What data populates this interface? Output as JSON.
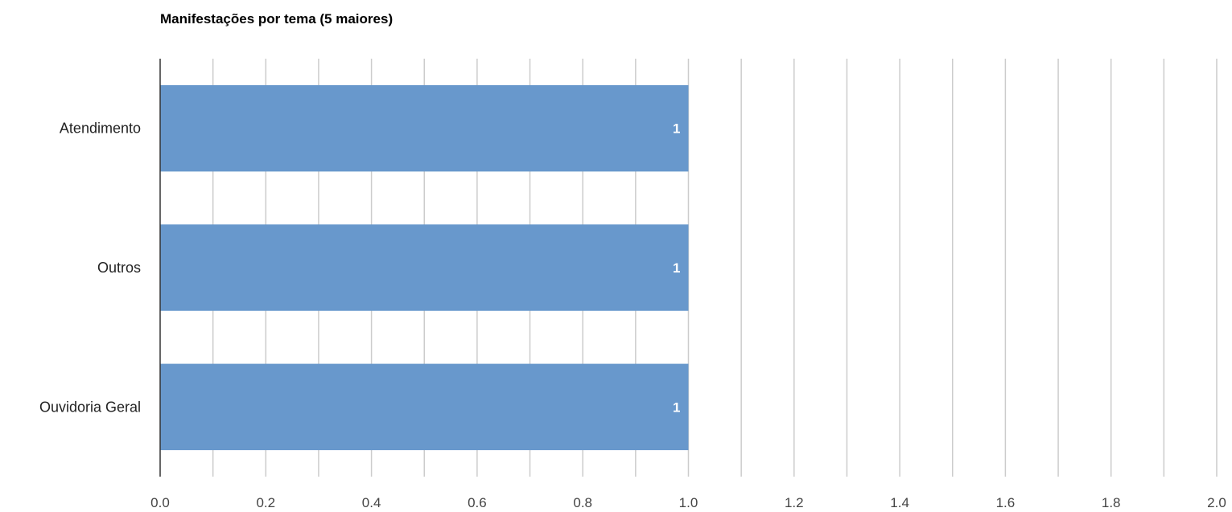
{
  "chart_data": {
    "type": "bar",
    "orientation": "horizontal",
    "title": "Manifestações por tema (5 maiores)",
    "xlabel": "",
    "ylabel": "",
    "categories": [
      "Atendimento",
      "Outros",
      "Ouvidoria Geral"
    ],
    "values": [
      1,
      1,
      1
    ],
    "data_labels": [
      "1",
      "1",
      "1"
    ],
    "xlim": [
      0,
      2
    ],
    "xticks": [
      0.0,
      0.2,
      0.4,
      0.6,
      0.8,
      1.0,
      1.2,
      1.4,
      1.6,
      1.8,
      2.0
    ],
    "xtick_labels": [
      "0.0",
      "0.2",
      "0.4",
      "0.6",
      "0.8",
      "1.0",
      "1.2",
      "1.4",
      "1.6",
      "1.8",
      "2.0"
    ],
    "grid": true,
    "bar_color": "#6898cc",
    "legend": "none"
  }
}
